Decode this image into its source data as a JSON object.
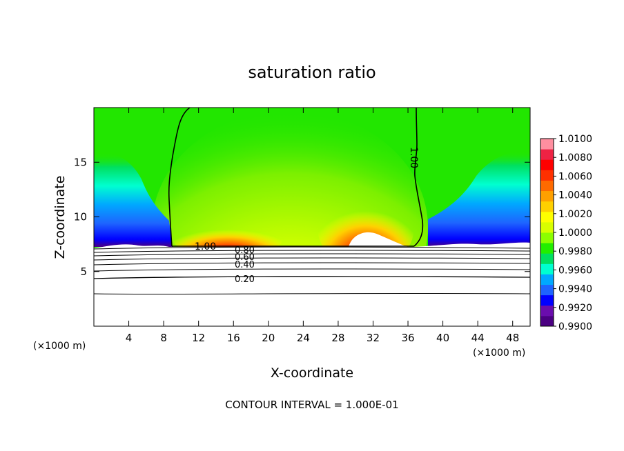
{
  "chart_data": {
    "type": "heatmap",
    "title": "saturation ratio",
    "xlabel": "X-coordinate",
    "ylabel": "Z-coordinate",
    "x_unit_left": "(×1000 m)",
    "x_unit_right": "(×1000 m)",
    "xlim": [
      0,
      50
    ],
    "ylim": [
      0,
      20
    ],
    "x_ticks": [
      4,
      8,
      12,
      16,
      20,
      24,
      28,
      32,
      36,
      40,
      44,
      48
    ],
    "x_tick_labels": [
      "4",
      "8",
      "12",
      "16",
      "20",
      "24",
      "28",
      "32",
      "36",
      "40",
      "44",
      "48"
    ],
    "y_ticks": [
      5,
      10,
      15
    ],
    "y_tick_labels": [
      "5",
      "10",
      "15"
    ],
    "colorbar": {
      "min": 0.99,
      "max": 1.01,
      "labels": [
        "1.0100",
        "1.0080",
        "1.0060",
        "1.0040",
        "1.0020",
        "1.0000",
        "0.9980",
        "0.9960",
        "0.9940",
        "0.9920",
        "0.9900"
      ],
      "colors": [
        "#4b0082",
        "#6a0dad",
        "#0000ff",
        "#1e64ff",
        "#00a8ff",
        "#00ffd0",
        "#00e060",
        "#22ee00",
        "#8cff00",
        "#d8ff00",
        "#ffff00",
        "#ffd000",
        "#ffa000",
        "#ff6a00",
        "#ff3000",
        "#ff0000",
        "#ee2244",
        "#ff8fa0"
      ]
    },
    "contour_labels": [
      "1.00",
      "1.00",
      "0.80",
      "0.60",
      "0.40",
      "0.20"
    ],
    "footer": "CONTOUR INTERVAL = 1.000E-01"
  }
}
